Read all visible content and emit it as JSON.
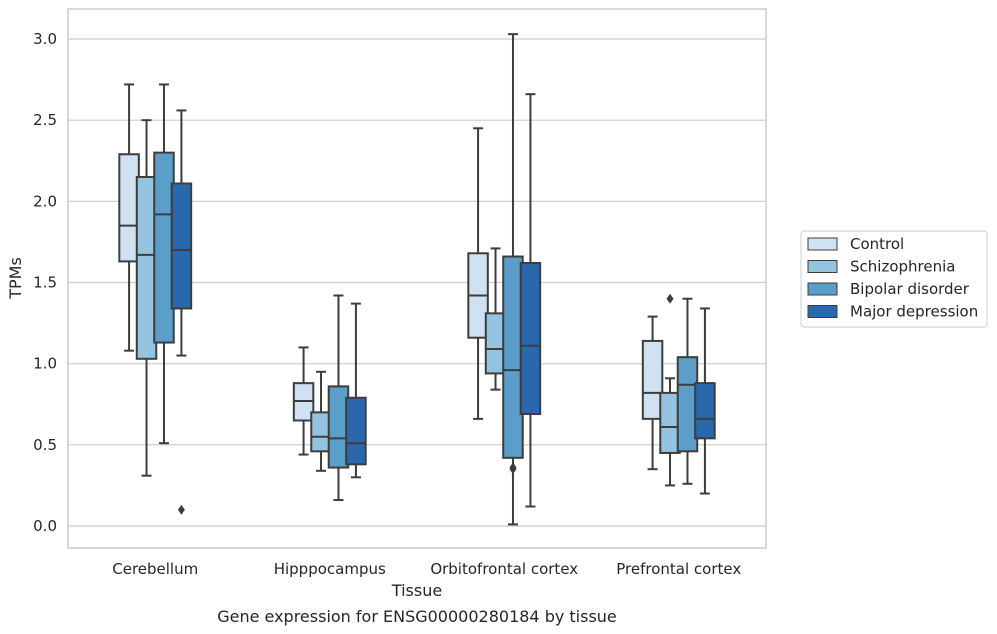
{
  "chart_data": {
    "type": "box",
    "title": "",
    "xlabel": "Tissue",
    "ylabel": "TPMs",
    "caption": "Gene expression for ENSG00000280184 by tissue",
    "ylim": [
      -0.13,
      3.18
    ],
    "yticks": [
      "0.0",
      "0.5",
      "1.0",
      "1.5",
      "2.0",
      "2.5",
      "3.0"
    ],
    "grid": "horizontal",
    "legend_position": "outside-right",
    "categories": [
      "Cerebellum",
      "Hipppocampus",
      "Orbitofrontal cortex",
      "Prefrontal cortex"
    ],
    "series": [
      {
        "name": "Control",
        "color": "#d0e1f2",
        "boxes": [
          {
            "whislo": 1.08,
            "q1": 1.63,
            "med": 1.85,
            "q3": 2.29,
            "whishi": 2.72,
            "fliers": []
          },
          {
            "whislo": 0.44,
            "q1": 0.65,
            "med": 0.77,
            "q3": 0.88,
            "whishi": 1.1,
            "fliers": []
          },
          {
            "whislo": 0.66,
            "q1": 1.16,
            "med": 1.42,
            "q3": 1.68,
            "whishi": 2.45,
            "fliers": []
          },
          {
            "whislo": 0.35,
            "q1": 0.66,
            "med": 0.82,
            "q3": 1.14,
            "whishi": 1.29,
            "fliers": []
          }
        ]
      },
      {
        "name": "Schizophrenia",
        "color": "#94c4df",
        "boxes": [
          {
            "whislo": 0.31,
            "q1": 1.03,
            "med": 1.67,
            "q3": 2.15,
            "whishi": 2.5,
            "fliers": []
          },
          {
            "whislo": 0.34,
            "q1": 0.46,
            "med": 0.55,
            "q3": 0.7,
            "whishi": 0.95,
            "fliers": []
          },
          {
            "whislo": 0.84,
            "q1": 0.94,
            "med": 1.09,
            "q3": 1.31,
            "whishi": 1.71,
            "fliers": []
          },
          {
            "whislo": 0.25,
            "q1": 0.45,
            "med": 0.61,
            "q3": 0.82,
            "whishi": 0.91,
            "fliers": [
              1.4
            ]
          }
        ]
      },
      {
        "name": "Bipolar disorder",
        "color": "#5a9ec9",
        "boxes": [
          {
            "whislo": 0.51,
            "q1": 1.13,
            "med": 1.92,
            "q3": 2.3,
            "whishi": 2.72,
            "fliers": []
          },
          {
            "whislo": 0.16,
            "q1": 0.36,
            "med": 0.54,
            "q3": 0.86,
            "whishi": 1.42,
            "fliers": []
          },
          {
            "whislo": 0.01,
            "q1": 0.42,
            "med": 0.96,
            "q3": 1.66,
            "whishi": 3.03,
            "fliers": [
              0.35,
              0.36
            ]
          },
          {
            "whislo": 0.26,
            "q1": 0.46,
            "med": 0.87,
            "q3": 1.04,
            "whishi": 1.4,
            "fliers": []
          }
        ]
      },
      {
        "name": "Major depression",
        "color": "#2a68ad",
        "boxes": [
          {
            "whislo": 1.05,
            "q1": 1.34,
            "med": 1.7,
            "q3": 2.11,
            "whishi": 2.56,
            "fliers": [
              0.1
            ]
          },
          {
            "whislo": 0.3,
            "q1": 0.38,
            "med": 0.51,
            "q3": 0.79,
            "whishi": 1.37,
            "fliers": []
          },
          {
            "whislo": 0.12,
            "q1": 0.69,
            "med": 1.11,
            "q3": 1.62,
            "whishi": 2.66,
            "fliers": []
          },
          {
            "whislo": 0.2,
            "q1": 0.54,
            "med": 0.66,
            "q3": 0.88,
            "whishi": 1.34,
            "fliers": []
          }
        ]
      }
    ]
  }
}
